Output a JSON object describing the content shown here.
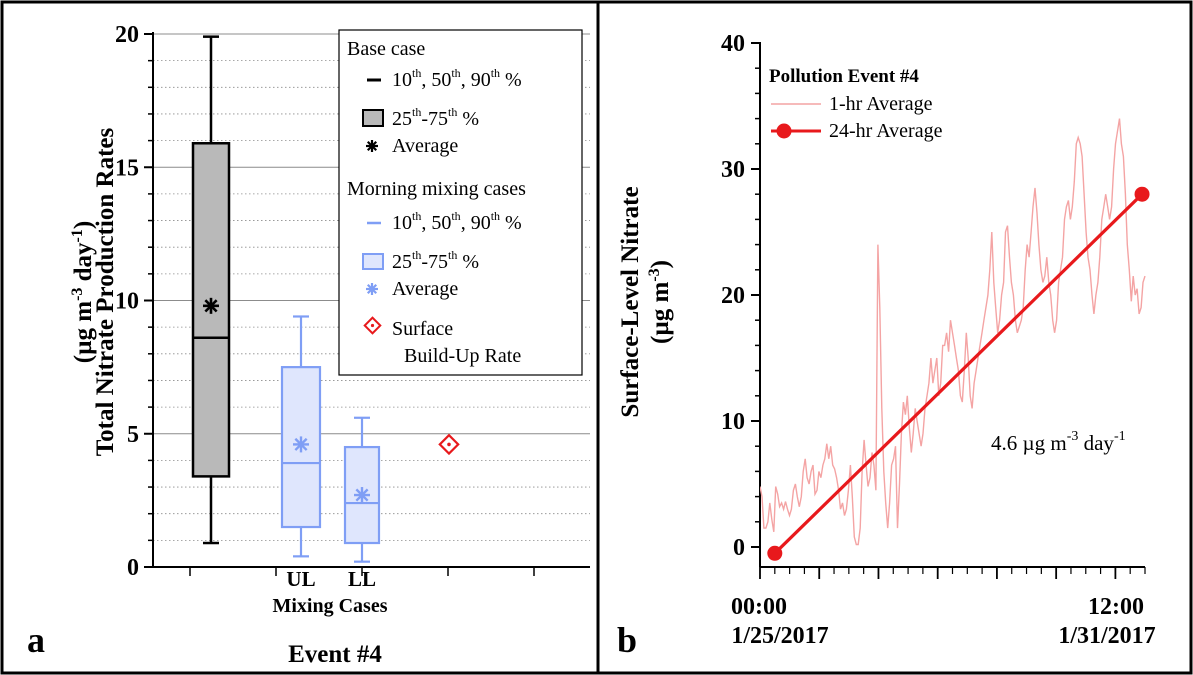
{
  "panels": {
    "a": {
      "letter": "a",
      "ylabel_line1": "Total Nitrate Production Rates",
      "ylabel_line2_parts": [
        "(µg m",
        "-3",
        " day",
        "-1",
        ")"
      ],
      "xgroup_label": "Mixing Cases",
      "event_label": "Event #4"
    },
    "b": {
      "letter": "b",
      "ylabel_line1": "Surface-Level Nitrate",
      "ylabel_line2_parts": [
        "(µg m",
        "-3",
        ")"
      ],
      "annotation_parts": [
        "4.6 µg m",
        "-3",
        " day",
        "-1"
      ],
      "xtick_time": [
        "00:00",
        "12:00"
      ],
      "xtick_date": [
        "1/25/2017",
        "1/31/2017"
      ]
    }
  },
  "legend_a": {
    "base_header": "Base case",
    "pct_10_50_90_parts": [
      "10",
      "th",
      ", 50",
      "th",
      ", 90",
      "th",
      " %"
    ],
    "pct_25_75_parts": [
      "25",
      "th",
      "-75",
      "th",
      " %"
    ],
    "average": "Average",
    "morning_header": "Morning mixing cases",
    "surface_line1": "Surface",
    "surface_line2": "Build-Up Rate"
  },
  "legend_b": {
    "title": "Pollution Event #4",
    "item_1hr": "1-hr Average",
    "item_24hr": "24-hr Average"
  },
  "colors": {
    "base_fill": "#b9b9b9",
    "mixing_line": "#7f9ef5",
    "mixing_fill": "#dfe6fd",
    "red": "#e8191c",
    "light_red": "#f4a4a4"
  },
  "chart_data": [
    {
      "type": "box",
      "ylim": [
        0,
        20
      ],
      "yticks": [
        0,
        5,
        10,
        15,
        20
      ],
      "categories": [
        "",
        "UL",
        "LL"
      ],
      "boxes": [
        {
          "name": "Base case",
          "p10": 0.9,
          "p25": 3.4,
          "p50": 8.6,
          "p75": 15.9,
          "p90": 19.9,
          "mean": 9.8
        },
        {
          "name": "UL",
          "p10": 0.4,
          "p25": 1.5,
          "p50": 3.9,
          "p75": 7.5,
          "p90": 9.4,
          "mean": 4.6
        },
        {
          "name": "LL",
          "p10": 0.2,
          "p25": 0.9,
          "p50": 2.4,
          "p75": 4.5,
          "p90": 5.6,
          "mean": 2.7
        }
      ],
      "surface_build_up_rate": 4.6,
      "grid": "horizontal major + dotted minor"
    },
    {
      "type": "line",
      "ylim": [
        -1,
        40
      ],
      "yticks": [
        0,
        10,
        20,
        30,
        40
      ],
      "x_range_days": [
        0,
        6.5
      ],
      "series": [
        {
          "name": "1-hr Average",
          "values": [
            4.8,
            4,
            1.5,
            1.5,
            2,
            3.5,
            2.2,
            1.2,
            4.8,
            4.2,
            3.2,
            3.5,
            3,
            3.6,
            3,
            2.5,
            3,
            4.5,
            5,
            4,
            3.2,
            4,
            6,
            7,
            5.5,
            5,
            6,
            6.5,
            4.2,
            4.5,
            6,
            5.5,
            6.5,
            7,
            8.2,
            7,
            8,
            6.5,
            6.2,
            5.5,
            4.5,
            3,
            3.5,
            2.5,
            3,
            4.5,
            6.5,
            4,
            0.8,
            0.2,
            0.2,
            1.5,
            6,
            8.5,
            6.5,
            4.8,
            5.5,
            7.5,
            6.5,
            4.5,
            24,
            19,
            11,
            6,
            3.5,
            1.5,
            3.5,
            6.5,
            7,
            8,
            1.5,
            5,
            9,
            11.5,
            10.5,
            12,
            9.5,
            7.5,
            9,
            11,
            10,
            9,
            8,
            9,
            11,
            12,
            13,
            15,
            13,
            14,
            15,
            12,
            13,
            16,
            16,
            17,
            15.5,
            18,
            17,
            16,
            15,
            14,
            12,
            11.5,
            14,
            17,
            15,
            12,
            11,
            13,
            14,
            15,
            16,
            17,
            18,
            19,
            20,
            22,
            25,
            21,
            19,
            17,
            18,
            20,
            21,
            25,
            25.5,
            23,
            21,
            20,
            18,
            17,
            17.5,
            18,
            19,
            22,
            24,
            23,
            25,
            27,
            28.5,
            26.5,
            24,
            22,
            21,
            21.5,
            23,
            21,
            20,
            18,
            17,
            18,
            21,
            22,
            23,
            26,
            27,
            27.5,
            26,
            27,
            29,
            32,
            32.5,
            32,
            31,
            28,
            25,
            23,
            22,
            20,
            18.5,
            20,
            21,
            23,
            26,
            27,
            28,
            27,
            26,
            27,
            30,
            32,
            33,
            34,
            32,
            31,
            28,
            24,
            22,
            19.5,
            21.5,
            20,
            20.5,
            18.5,
            19,
            21,
            21.5
          ]
        },
        {
          "name": "24-hr Average",
          "x": [
            0.25,
            6.45
          ],
          "values": [
            -0.5,
            28
          ]
        }
      ]
    }
  ]
}
